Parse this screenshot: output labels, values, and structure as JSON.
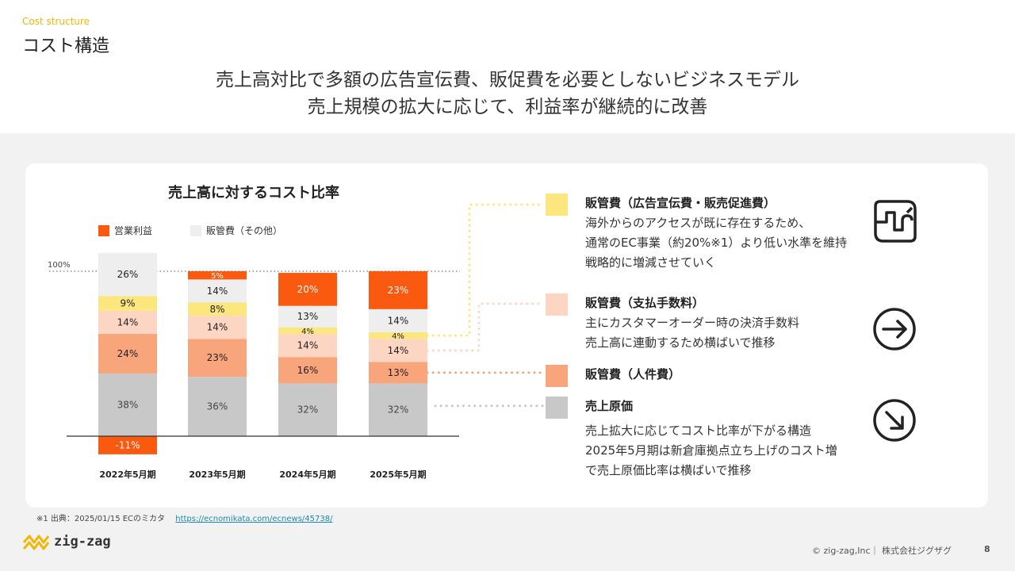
{
  "header": {
    "section_en": "Cost structure",
    "section_jp": "コスト構造",
    "headline_1": "売上高対比で多額の広告宣伝費、販促費を必要としないビジネスモデル",
    "headline_2": "売上規模の拡大に応じて、利益率が継続的に改善"
  },
  "chart_data": {
    "type": "bar",
    "stacked": true,
    "title": "売上高に対するコスト比率",
    "reference_line": {
      "value": 100,
      "label": "100%"
    },
    "categories": [
      "2022年5月期",
      "2023年5月期",
      "2024年5月期",
      "2025年5月期"
    ],
    "series": [
      {
        "name": "売上原価",
        "color": "#c8c8c8",
        "values": [
          38,
          36,
          32,
          32
        ],
        "labels": [
          "38%",
          "36%",
          "32%",
          "32%"
        ],
        "label_color": "#444444"
      },
      {
        "name": "販管費（人件費）",
        "color": "#f9a57c",
        "values": [
          24,
          23,
          16,
          13
        ],
        "labels": [
          "24%",
          "23%",
          "16%",
          "13%"
        ],
        "label_color": "#222222"
      },
      {
        "name": "販管費（支払手数料）",
        "color": "#fdd5c3",
        "values": [
          14,
          14,
          14,
          14
        ],
        "labels": [
          "14%",
          "14%",
          "14%",
          "14%"
        ],
        "label_color": "#222222"
      },
      {
        "name": "販管費（広告宣伝費・販売促進費）",
        "color": "#fce77e",
        "values": [
          9,
          8,
          4,
          4
        ],
        "labels": [
          "9%",
          "8%",
          "4%",
          "4%"
        ],
        "label_color": "#222222"
      },
      {
        "name": "販管費（その他）",
        "color": "#eeeeee",
        "values": [
          26,
          14,
          13,
          14
        ],
        "labels": [
          "26%",
          "14%",
          "13%",
          "14%"
        ],
        "label_color": "#222222"
      },
      {
        "name": "営業利益",
        "color": "#fa5a0f",
        "values": [
          -11,
          5,
          20,
          23
        ],
        "labels": [
          "-11%",
          "5%",
          "20%",
          "23%"
        ],
        "label_color": "#ffffff"
      }
    ],
    "legend": [
      {
        "label": "営業利益",
        "color": "#fa5a0f"
      },
      {
        "label": "販管費（その他）",
        "color": "#eeeeee"
      }
    ]
  },
  "categories_panel": [
    {
      "head": "販管費（広告宣伝費・販売促進費）",
      "color": "#fce77e",
      "lines": [
        "海外からのアクセスが既に存在するため、",
        "通常のEC事業（約20%※1）より低い水準を維持",
        "戦略的に増減させていく"
      ]
    },
    {
      "head": "販管費（支払手数料）",
      "color": "#fdd5c3",
      "lines": [
        "主にカスタマーオーダー時の決済手数料",
        "売上高に連動するため横ばいで推移"
      ]
    },
    {
      "head": "販管費（人件費）",
      "color": "#f9a57c",
      "lines": []
    },
    {
      "head": "売上原価",
      "color": "#c8c8c8",
      "lines": []
    }
  ],
  "cogs_desc": [
    "売上拡大に応じてコスト比率が下がる構造",
    "2025年5月期は新倉庫拠点立ち上げのコスト増",
    "で売上原価比率は横ばいで推移"
  ],
  "icons": {
    "ad": "wavy-arrow-box-icon",
    "fee": "arrow-right-circle-icon",
    "cogs": "arrow-down-right-circle-icon"
  },
  "footer": {
    "footnote": "※1  出典：2025/01/15 ECのミカタ",
    "footnote_link": "https://ecnomikata.com/ecnews/45738/",
    "logo_text": "zig-zag",
    "copyright": "© zig-zag,Inc｜ 株式会社ジグザグ",
    "page_number": "8"
  }
}
